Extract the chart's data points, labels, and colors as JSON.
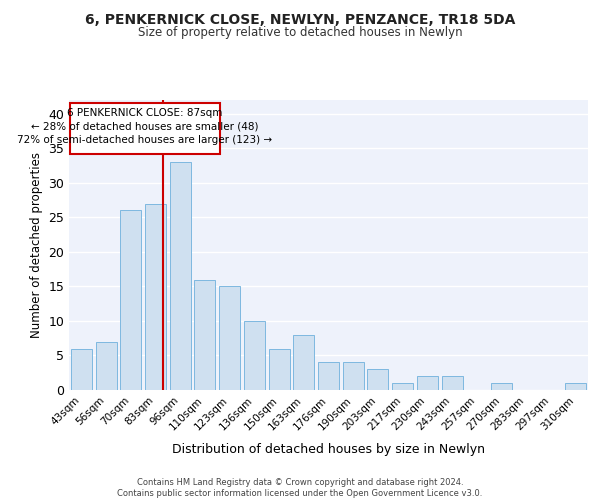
{
  "title1": "6, PENKERNICK CLOSE, NEWLYN, PENZANCE, TR18 5DA",
  "title2": "Size of property relative to detached houses in Newlyn",
  "xlabel": "Distribution of detached houses by size in Newlyn",
  "ylabel": "Number of detached properties",
  "categories": [
    "43sqm",
    "56sqm",
    "70sqm",
    "83sqm",
    "96sqm",
    "110sqm",
    "123sqm",
    "136sqm",
    "150sqm",
    "163sqm",
    "176sqm",
    "190sqm",
    "203sqm",
    "217sqm",
    "230sqm",
    "243sqm",
    "257sqm",
    "270sqm",
    "283sqm",
    "297sqm",
    "310sqm"
  ],
  "values": [
    6,
    7,
    26,
    27,
    33,
    16,
    15,
    10,
    6,
    8,
    4,
    4,
    3,
    1,
    2,
    2,
    0,
    1,
    0,
    0,
    1
  ],
  "bar_color": "#cfe0f0",
  "bar_edge_color": "#7db8e0",
  "highlight_line_color": "#cc0000",
  "annotation_line1": "6 PENKERNICK CLOSE: 87sqm",
  "annotation_line2": "← 28% of detached houses are smaller (48)",
  "annotation_line3": "72% of semi-detached houses are larger (123) →",
  "annotation_box_color": "#ffffff",
  "annotation_box_edge": "#cc0000",
  "footer1": "Contains HM Land Registry data © Crown copyright and database right 2024.",
  "footer2": "Contains public sector information licensed under the Open Government Licence v3.0.",
  "bg_color": "#eef2fb",
  "grid_color": "#ffffff",
  "ylim": [
    0,
    42
  ],
  "yticks": [
    0,
    5,
    10,
    15,
    20,
    25,
    30,
    35,
    40
  ]
}
